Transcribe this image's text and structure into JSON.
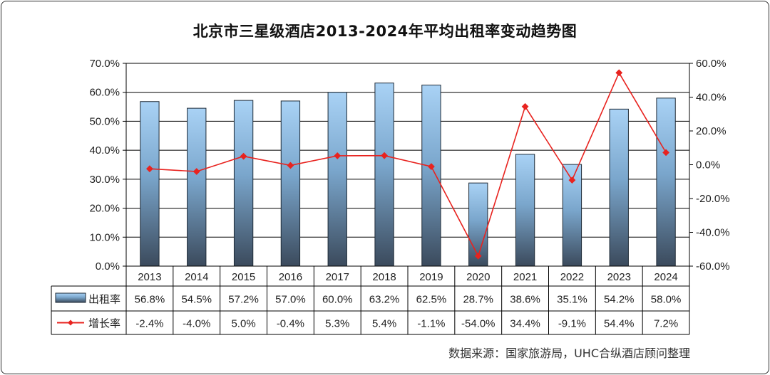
{
  "chart_data": {
    "type": "bar",
    "title": "北京市三星级酒店2013-2024年平均出租率变动趋势图",
    "source": "数据来源：国家旅游局，UHC合纵酒店顾问整理",
    "categories": [
      "2013",
      "2014",
      "2015",
      "2016",
      "2017",
      "2018",
      "2019",
      "2020",
      "2021",
      "2022",
      "2023",
      "2024"
    ],
    "series": [
      {
        "name": "出租率",
        "type": "bar",
        "axis": "left",
        "values": [
          56.8,
          54.5,
          57.2,
          57.0,
          60.0,
          63.2,
          62.5,
          28.7,
          38.6,
          35.1,
          54.2,
          58.0
        ],
        "labels": [
          "56.8%",
          "54.5%",
          "57.2%",
          "57.0%",
          "60.0%",
          "63.2%",
          "62.5%",
          "28.7%",
          "38.6%",
          "35.1%",
          "54.2%",
          "58.0%"
        ]
      },
      {
        "name": "增长率",
        "type": "line",
        "axis": "right",
        "values": [
          -2.4,
          -4.0,
          5.0,
          -0.4,
          5.3,
          5.4,
          -1.1,
          -54.0,
          34.4,
          -9.1,
          54.4,
          7.2
        ],
        "labels": [
          "-2.4%",
          "-4.0%",
          "5.0%",
          "-0.4%",
          "5.3%",
          "5.4%",
          "-1.1%",
          "-54.0%",
          "34.4%",
          "-9.1%",
          "54.4%",
          "7.2%"
        ]
      }
    ],
    "left_axis": {
      "ylim": [
        0,
        70
      ],
      "ticks": [
        "0.0%",
        "10.0%",
        "20.0%",
        "30.0%",
        "40.0%",
        "50.0%",
        "60.0%",
        "70.0%"
      ]
    },
    "right_axis": {
      "ylim": [
        -60,
        60
      ],
      "ticks": [
        "-60.0%",
        "-40.0%",
        "-20.0%",
        "0.0%",
        "20.0%",
        "40.0%",
        "60.0%"
      ]
    },
    "legend_placement": "data-table",
    "colors": {
      "bar_top": "#a9d2f5",
      "bar_bottom": "#3b4a5c",
      "line": "#e8231f"
    }
  }
}
